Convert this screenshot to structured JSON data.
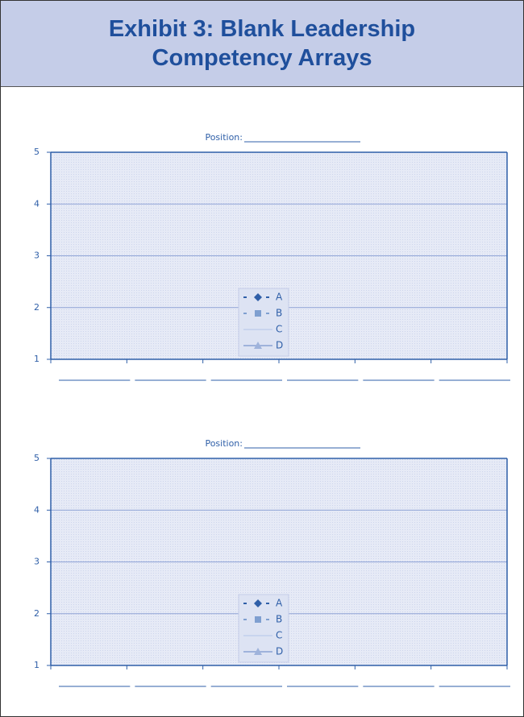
{
  "header": {
    "title": "Exhibit 3: Blank Leadership Competency Arrays"
  },
  "chart_data": [
    {
      "type": "line",
      "title": "Position:",
      "categories": [
        null,
        null,
        null,
        null,
        null,
        null
      ],
      "series": [
        {
          "name": "A",
          "color": "#2f5fa8",
          "marker": "diamond",
          "values": [
            null,
            null,
            null,
            null,
            null,
            null
          ]
        },
        {
          "name": "B",
          "color": "#7f9fd0",
          "marker": "square",
          "values": [
            null,
            null,
            null,
            null,
            null,
            null
          ]
        },
        {
          "name": "C",
          "color": "#c8d4ee",
          "marker": "none",
          "values": [
            null,
            null,
            null,
            null,
            null,
            null
          ]
        },
        {
          "name": "D",
          "color": "#9fb3db",
          "marker": "triangle",
          "values": [
            null,
            null,
            null,
            null,
            null,
            null
          ]
        }
      ],
      "ylim": [
        1,
        5
      ],
      "yticks": [
        1,
        2,
        3,
        4,
        5
      ],
      "grid": true,
      "legend": "bottom"
    },
    {
      "type": "line",
      "title": "Position:",
      "categories": [
        null,
        null,
        null,
        null,
        null,
        null
      ],
      "series": [
        {
          "name": "A",
          "color": "#2f5fa8",
          "marker": "diamond",
          "values": [
            null,
            null,
            null,
            null,
            null,
            null
          ]
        },
        {
          "name": "B",
          "color": "#7f9fd0",
          "marker": "square",
          "values": [
            null,
            null,
            null,
            null,
            null,
            null
          ]
        },
        {
          "name": "C",
          "color": "#c8d4ee",
          "marker": "none",
          "values": [
            null,
            null,
            null,
            null,
            null,
            null
          ]
        },
        {
          "name": "D",
          "color": "#9fb3db",
          "marker": "triangle",
          "values": [
            null,
            null,
            null,
            null,
            null,
            null
          ]
        }
      ],
      "ylim": [
        1,
        5
      ],
      "yticks": [
        1,
        2,
        3,
        4,
        5
      ],
      "grid": true,
      "legend": "bottom"
    }
  ]
}
